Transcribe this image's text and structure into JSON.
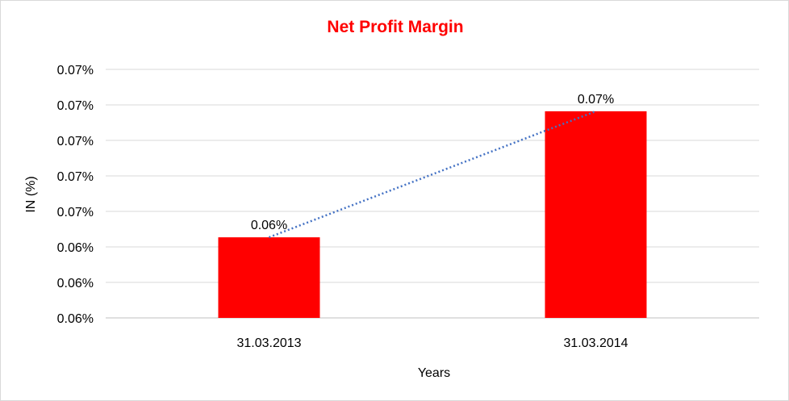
{
  "chart_data": {
    "type": "bar",
    "title": "Net Profit Margin",
    "xlabel": "Years",
    "ylabel": "IN (%)",
    "categories": [
      "31.03.2013",
      "31.03.2014"
    ],
    "values": [
      0.06427,
      0.06782
    ],
    "data_labels": [
      "0.06%",
      "0.07%"
    ],
    "ylim": [
      0.062,
      0.069
    ],
    "yticks": [
      0.062,
      0.063,
      0.064,
      0.065,
      0.066,
      0.067,
      0.068,
      0.069
    ],
    "ytick_labels": [
      "0.06%",
      "0.06%",
      "0.06%",
      "0.07%",
      "0.07%",
      "0.07%",
      "0.07%",
      "0.07%"
    ],
    "grid": true,
    "legend": "none",
    "trendline": "linear, dotted",
    "colors": {
      "bar": "#ff0000",
      "title": "#ff0000",
      "trendline": "#4472c4",
      "grid": "#d9d9d9"
    }
  }
}
